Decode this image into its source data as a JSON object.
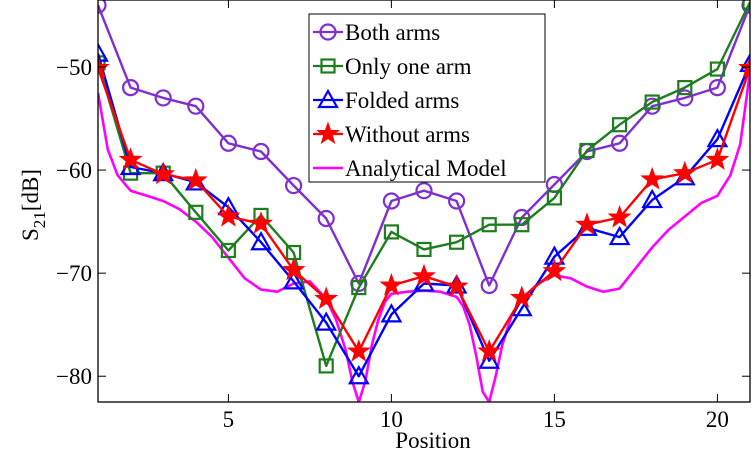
{
  "chart_data": {
    "type": "line",
    "xlabel": "Position",
    "ylabel_main": "S",
    "ylabel_sub": "21",
    "ylabel_unit": "[dB]",
    "xlim": [
      1,
      21
    ],
    "ylim": [
      -82.5,
      -43.5
    ],
    "xticks": [
      5,
      10,
      15,
      20
    ],
    "yticks": [
      -50,
      -60,
      -70,
      -80
    ],
    "grid": false,
    "legend_position": "top-center",
    "x": [
      1,
      2,
      3,
      4,
      5,
      6,
      7,
      8,
      9,
      10,
      11,
      12,
      13,
      14,
      15,
      16,
      17,
      18,
      19,
      20,
      21
    ],
    "series": [
      {
        "name": "Both arms",
        "color": "#7f2fd0",
        "marker": "circle",
        "values": [
          -44.0,
          -52.0,
          -53.0,
          -53.8,
          -57.4,
          -58.2,
          -61.5,
          -64.7,
          -71.0,
          -63.0,
          -62.0,
          -63.0,
          -71.2,
          -64.6,
          -61.4,
          -58.2,
          -57.4,
          -53.8,
          -53.0,
          -52.0,
          -44.0
        ]
      },
      {
        "name": "Only one arm",
        "color": "#1e7d1e",
        "marker": "square",
        "values": [
          -49.6,
          -60.3,
          -60.3,
          -64.1,
          -67.8,
          -64.4,
          -68.0,
          -79.0,
          -71.4,
          -66.0,
          -67.7,
          -67.0,
          -65.3,
          -65.3,
          -62.7,
          -58.1,
          -55.6,
          -53.4,
          -52.0,
          -50.2,
          -43.7
        ]
      },
      {
        "name": "Folded arms",
        "color": "#0000ff",
        "marker": "triangle",
        "values": [
          -48.7,
          -59.7,
          -60.3,
          -61.2,
          -63.6,
          -67.0,
          -70.8,
          -74.8,
          -80.0,
          -74.0,
          -71.0,
          -71.2,
          -78.5,
          -73.4,
          -68.4,
          -65.6,
          -66.5,
          -62.9,
          -60.7,
          -57.0,
          -49.7
        ]
      },
      {
        "name": "Without arms",
        "color": "#ff0000",
        "marker": "star",
        "values": [
          -50.1,
          -59.0,
          -60.4,
          -61.0,
          -64.5,
          -65.2,
          -69.7,
          -72.5,
          -77.6,
          -71.2,
          -70.3,
          -71.3,
          -77.6,
          -72.4,
          -69.8,
          -65.3,
          -64.6,
          -60.9,
          -60.3,
          -59.0,
          -50.1
        ]
      },
      {
        "name": "Analytical Model",
        "color": "#ff00ff",
        "marker": "none",
        "x": [
          1.0,
          1.3,
          1.6,
          2.0,
          2.5,
          3.0,
          3.5,
          4.0,
          4.5,
          5.0,
          5.5,
          6.0,
          6.5,
          7.0,
          7.5,
          8.0,
          8.3,
          8.6,
          8.8,
          9.0,
          9.2,
          9.4,
          9.6,
          9.8,
          10.0,
          10.5,
          11.0,
          11.5,
          12.0,
          12.2,
          12.4,
          12.6,
          12.8,
          13.0,
          13.2,
          13.4,
          13.7,
          14.0,
          14.5,
          15.0,
          15.5,
          16.0,
          16.5,
          17.0,
          17.5,
          18.0,
          18.5,
          19.0,
          19.5,
          20.0,
          20.4,
          20.7,
          21.0
        ],
        "values": [
          -52.5,
          -58.0,
          -60.5,
          -62.0,
          -62.5,
          -63.0,
          -63.8,
          -65.0,
          -66.5,
          -68.5,
          -70.5,
          -71.6,
          -71.8,
          -71.0,
          -70.8,
          -72.5,
          -74.5,
          -77.5,
          -80.5,
          -82.5,
          -80.5,
          -77.0,
          -74.5,
          -72.8,
          -72.0,
          -71.8,
          -71.7,
          -71.8,
          -72.3,
          -73.2,
          -75.0,
          -78.0,
          -81.5,
          -82.5,
          -80.0,
          -77.0,
          -74.0,
          -72.5,
          -71.0,
          -70.2,
          -70.5,
          -71.3,
          -71.8,
          -71.5,
          -69.5,
          -67.5,
          -65.8,
          -64.5,
          -63.2,
          -62.5,
          -60.5,
          -57.5,
          -50.5
        ]
      }
    ]
  }
}
